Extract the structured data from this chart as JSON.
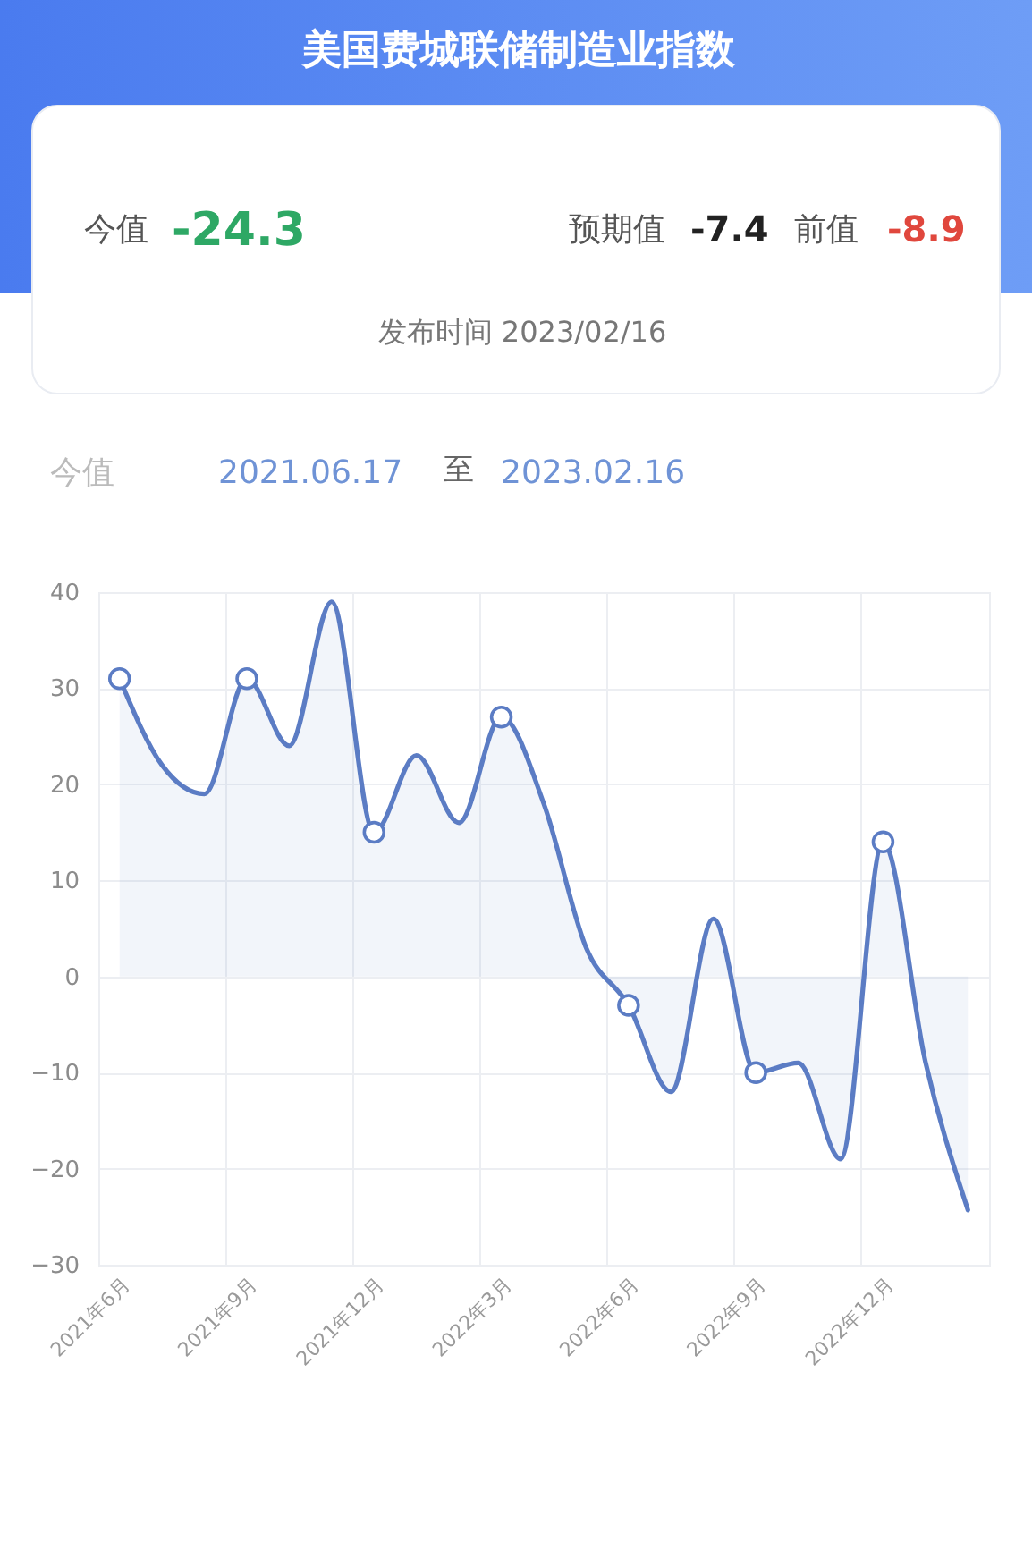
{
  "chart_data": {
    "type": "area",
    "title": "美国费城联储制造业指数",
    "annotations": [
      "今值",
      "-24.3",
      "预期值",
      "-7.4",
      "前值",
      "-8.9",
      "发布时间 2023/02/16",
      "今值",
      "2021.06.17",
      "至",
      "2023.02.16"
    ],
    "categories": [
      "2021年6月",
      null,
      null,
      "2021年9月",
      null,
      null,
      "2021年12月",
      null,
      null,
      "2022年3月",
      null,
      null,
      "2022年6月",
      null,
      null,
      "2022年9月",
      null,
      null,
      "2022年12月",
      null,
      null
    ],
    "series": [
      {
        "color": "#5b7cc4",
        "values": [
          31,
          22,
          19,
          31,
          24,
          39,
          15,
          23,
          16,
          27,
          18,
          3,
          -3,
          -12,
          6,
          -10,
          -9,
          -19,
          14,
          -8.9,
          -24.3
        ]
      },
      {
        "type": "scatter",
        "color": "#5b7cc4",
        "marker": "circle",
        "x": [
          "2021年6月",
          "2021年9月",
          "2021年12月",
          "2022年3月",
          "2022年6月",
          "2022年9月",
          "2022年12月"
        ],
        "values": [
          31,
          31,
          15,
          27,
          -3,
          -10,
          14
        ]
      }
    ],
    "ylim": [
      -30,
      40
    ],
    "yticks": [
      -30,
      -20,
      -10,
      0,
      10,
      20,
      30,
      40
    ],
    "grid": true
  }
}
